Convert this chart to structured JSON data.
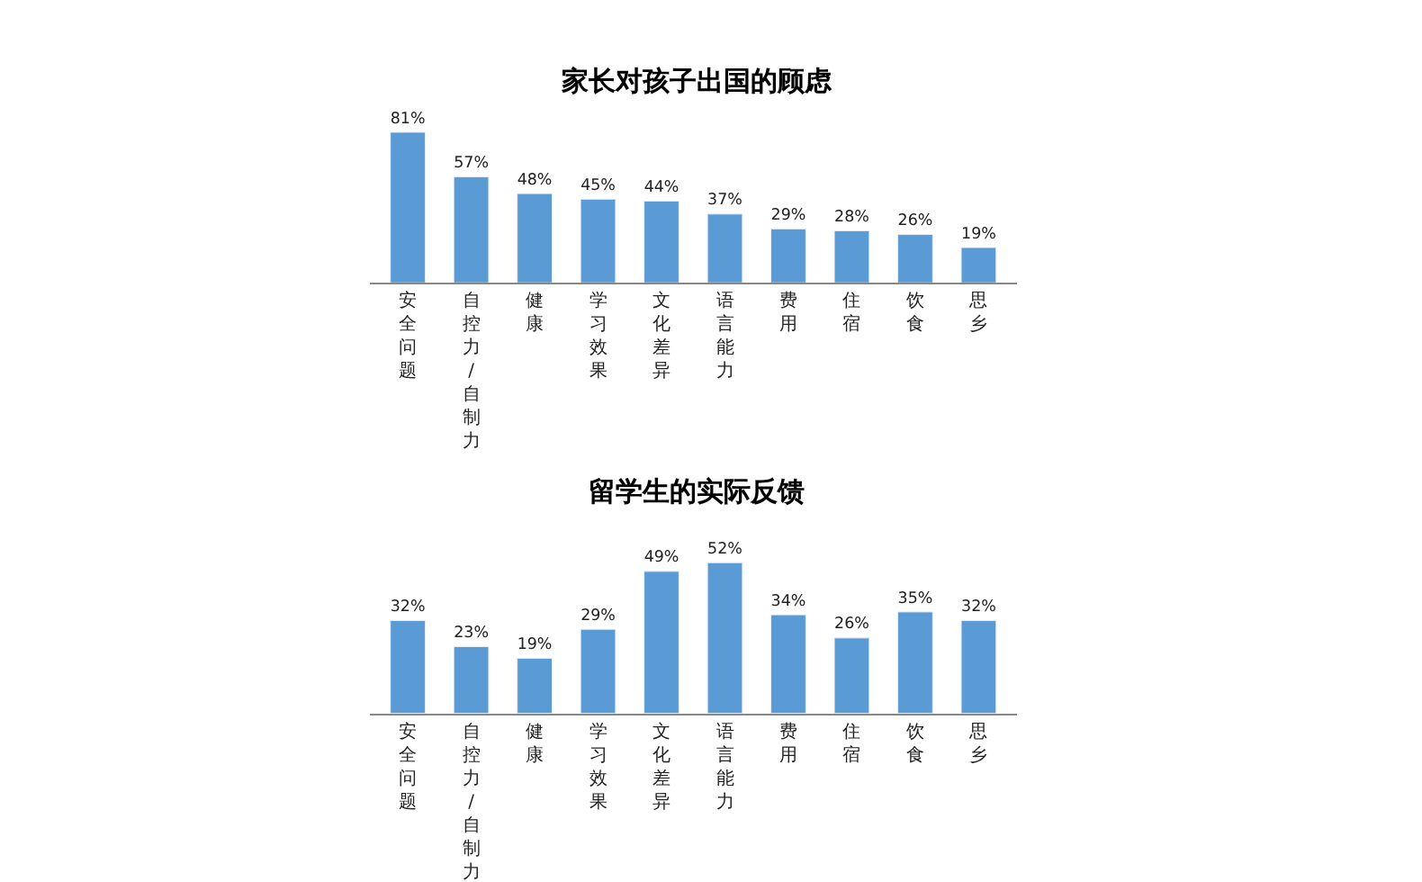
{
  "chart_data": [
    {
      "type": "bar",
      "title": "家长对孩子出国的顾虑",
      "categories": [
        "安全问题",
        "自控力/自制力",
        "健康",
        "学习效果",
        "文化差异",
        "语言能力",
        "费用",
        "住宿",
        "饮食",
        "思乡"
      ],
      "values": [
        81,
        57,
        48,
        45,
        44,
        37,
        29,
        28,
        26,
        19
      ],
      "value_labels": [
        "81%",
        "57%",
        "48%",
        "45%",
        "44%",
        "37%",
        "29%",
        "28%",
        "26%",
        "19%"
      ],
      "color": "#5b9bd5"
    },
    {
      "type": "bar",
      "title": "留学生的实际反馈",
      "categories": [
        "安全问题",
        "自控力/自制力",
        "健康",
        "学习效果",
        "文化差异",
        "语言能力",
        "费用",
        "住宿",
        "饮食",
        "思乡"
      ],
      "values": [
        32,
        23,
        19,
        29,
        49,
        52,
        34,
        26,
        35,
        32
      ],
      "value_labels": [
        "32%",
        "23%",
        "19%",
        "29%",
        "49%",
        "52%",
        "34%",
        "26%",
        "35%",
        "32%"
      ],
      "color": "#5b9bd5"
    }
  ]
}
